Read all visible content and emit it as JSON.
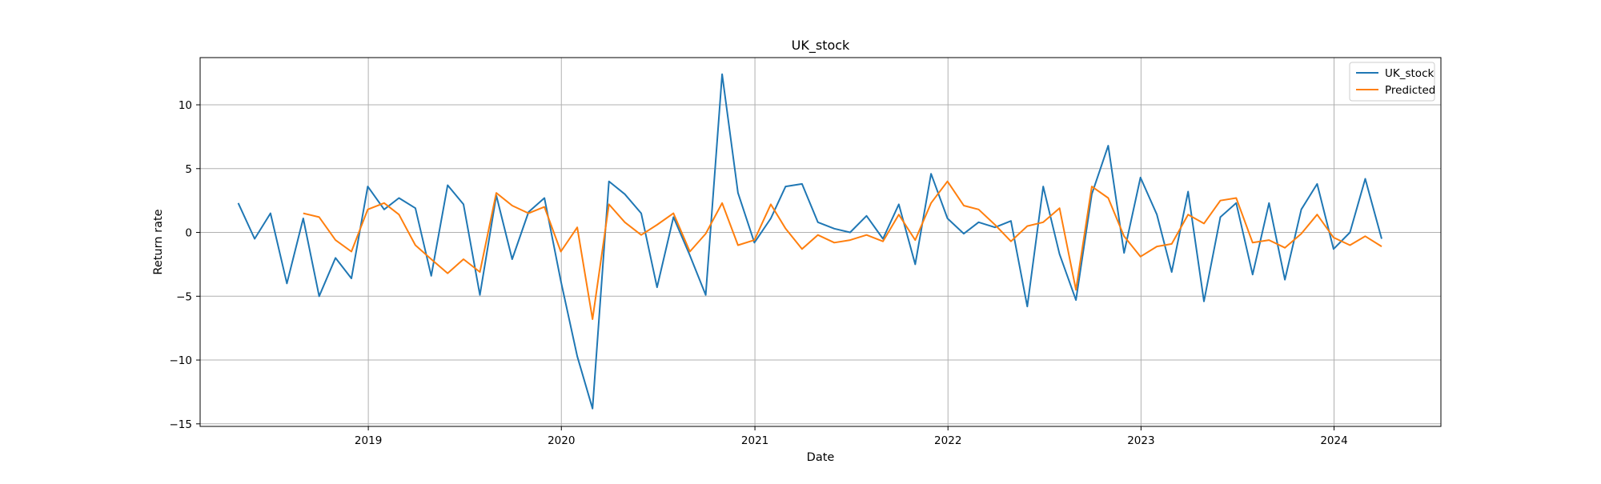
{
  "chart_data": {
    "type": "line",
    "title": "UK_stock",
    "xlabel": "Date",
    "ylabel": "Return rate",
    "xlim": [
      "2018-02-17",
      "2024-07-21"
    ],
    "ylim": [
      -15.2,
      13.7
    ],
    "x_ticks": [
      "2019",
      "2020",
      "2021",
      "2022",
      "2023",
      "2024"
    ],
    "y_ticks": [
      -15,
      -10,
      -5,
      0,
      5,
      10
    ],
    "grid": true,
    "legend_position": "top-right",
    "series": [
      {
        "name": "UK_stock",
        "color": "#1f77b4",
        "points": [
          [
            "2018-04-30",
            2.3
          ],
          [
            "2018-05-31",
            -0.5
          ],
          [
            "2018-06-30",
            1.5
          ],
          [
            "2018-07-31",
            -4.0
          ],
          [
            "2018-08-31",
            1.1
          ],
          [
            "2018-09-30",
            -5.0
          ],
          [
            "2018-10-31",
            -2.0
          ],
          [
            "2018-11-30",
            -3.6
          ],
          [
            "2018-12-31",
            3.6
          ],
          [
            "2019-01-31",
            1.8
          ],
          [
            "2019-02-28",
            2.7
          ],
          [
            "2019-03-31",
            1.9
          ],
          [
            "2019-04-30",
            -3.4
          ],
          [
            "2019-05-31",
            3.7
          ],
          [
            "2019-06-30",
            2.2
          ],
          [
            "2019-07-31",
            -4.9
          ],
          [
            "2019-08-31",
            2.9
          ],
          [
            "2019-09-30",
            -2.1
          ],
          [
            "2019-10-31",
            1.6
          ],
          [
            "2019-11-30",
            2.7
          ],
          [
            "2019-12-31",
            -3.8
          ],
          [
            "2020-01-31",
            -9.7
          ],
          [
            "2020-02-29",
            -13.8
          ],
          [
            "2020-03-31",
            4.0
          ],
          [
            "2020-04-30",
            3.0
          ],
          [
            "2020-05-31",
            1.5
          ],
          [
            "2020-06-30",
            -4.3
          ],
          [
            "2020-07-31",
            1.2
          ],
          [
            "2020-08-31",
            -1.8
          ],
          [
            "2020-09-30",
            -4.9
          ],
          [
            "2020-10-31",
            12.4
          ],
          [
            "2020-11-30",
            3.1
          ],
          [
            "2020-12-31",
            -0.8
          ],
          [
            "2021-01-31",
            1.1
          ],
          [
            "2021-02-28",
            3.6
          ],
          [
            "2021-03-31",
            3.8
          ],
          [
            "2021-04-30",
            0.8
          ],
          [
            "2021-05-31",
            0.3
          ],
          [
            "2021-06-30",
            0.0
          ],
          [
            "2021-07-31",
            1.3
          ],
          [
            "2021-08-31",
            -0.5
          ],
          [
            "2021-09-30",
            2.2
          ],
          [
            "2021-10-31",
            -2.5
          ],
          [
            "2021-11-30",
            4.6
          ],
          [
            "2021-12-31",
            1.1
          ],
          [
            "2022-01-31",
            -0.1
          ],
          [
            "2022-02-28",
            0.8
          ],
          [
            "2022-03-31",
            0.4
          ],
          [
            "2022-04-30",
            0.9
          ],
          [
            "2022-05-31",
            -5.8
          ],
          [
            "2022-06-30",
            3.6
          ],
          [
            "2022-07-31",
            -1.7
          ],
          [
            "2022-08-31",
            -5.3
          ],
          [
            "2022-09-30",
            3.0
          ],
          [
            "2022-10-31",
            6.8
          ],
          [
            "2022-11-30",
            -1.6
          ],
          [
            "2022-12-31",
            4.3
          ],
          [
            "2023-01-31",
            1.4
          ],
          [
            "2023-02-28",
            -3.1
          ],
          [
            "2023-03-31",
            3.2
          ],
          [
            "2023-04-30",
            -5.4
          ],
          [
            "2023-05-31",
            1.2
          ],
          [
            "2023-06-30",
            2.3
          ],
          [
            "2023-07-31",
            -3.3
          ],
          [
            "2023-08-31",
            2.3
          ],
          [
            "2023-09-30",
            -3.7
          ],
          [
            "2023-10-31",
            1.8
          ],
          [
            "2023-11-30",
            3.8
          ],
          [
            "2023-12-31",
            -1.3
          ],
          [
            "2024-01-31",
            0.0
          ],
          [
            "2024-02-29",
            4.2
          ],
          [
            "2024-03-31",
            -0.5
          ]
        ]
      },
      {
        "name": "Predicted",
        "color": "#ff7f0e",
        "points": [
          [
            "2018-08-31",
            1.5
          ],
          [
            "2018-09-30",
            1.2
          ],
          [
            "2018-10-31",
            -0.6
          ],
          [
            "2018-11-30",
            -1.5
          ],
          [
            "2018-12-31",
            1.8
          ],
          [
            "2019-01-31",
            2.3
          ],
          [
            "2019-02-28",
            1.4
          ],
          [
            "2019-03-31",
            -1.0
          ],
          [
            "2019-04-30",
            -2.1
          ],
          [
            "2019-05-31",
            -3.2
          ],
          [
            "2019-06-30",
            -2.1
          ],
          [
            "2019-07-31",
            -3.1
          ],
          [
            "2019-08-31",
            3.1
          ],
          [
            "2019-09-30",
            2.1
          ],
          [
            "2019-10-31",
            1.5
          ],
          [
            "2019-11-30",
            2.0
          ],
          [
            "2019-12-31",
            -1.5
          ],
          [
            "2020-01-31",
            0.4
          ],
          [
            "2020-02-29",
            -6.8
          ],
          [
            "2020-03-31",
            2.2
          ],
          [
            "2020-04-30",
            0.8
          ],
          [
            "2020-05-31",
            -0.2
          ],
          [
            "2020-06-30",
            0.6
          ],
          [
            "2020-07-31",
            1.5
          ],
          [
            "2020-08-31",
            -1.5
          ],
          [
            "2020-09-30",
            -0.1
          ],
          [
            "2020-10-31",
            2.3
          ],
          [
            "2020-11-30",
            -1.0
          ],
          [
            "2020-12-31",
            -0.6
          ],
          [
            "2021-01-31",
            2.2
          ],
          [
            "2021-02-28",
            0.3
          ],
          [
            "2021-03-31",
            -1.3
          ],
          [
            "2021-04-30",
            -0.2
          ],
          [
            "2021-05-31",
            -0.8
          ],
          [
            "2021-06-30",
            -0.6
          ],
          [
            "2021-07-31",
            -0.2
          ],
          [
            "2021-08-31",
            -0.7
          ],
          [
            "2021-09-30",
            1.4
          ],
          [
            "2021-10-31",
            -0.6
          ],
          [
            "2021-11-30",
            2.3
          ],
          [
            "2021-12-31",
            4.0
          ],
          [
            "2022-01-31",
            2.1
          ],
          [
            "2022-02-28",
            1.8
          ],
          [
            "2022-03-31",
            0.6
          ],
          [
            "2022-04-30",
            -0.7
          ],
          [
            "2022-05-31",
            0.5
          ],
          [
            "2022-06-30",
            0.8
          ],
          [
            "2022-07-31",
            1.9
          ],
          [
            "2022-08-31",
            -4.5
          ],
          [
            "2022-09-30",
            3.6
          ],
          [
            "2022-10-31",
            2.7
          ],
          [
            "2022-11-30",
            -0.3
          ],
          [
            "2022-12-31",
            -1.9
          ],
          [
            "2023-01-31",
            -1.1
          ],
          [
            "2023-02-28",
            -0.9
          ],
          [
            "2023-03-31",
            1.4
          ],
          [
            "2023-04-30",
            0.7
          ],
          [
            "2023-05-31",
            2.5
          ],
          [
            "2023-06-30",
            2.7
          ],
          [
            "2023-07-31",
            -0.8
          ],
          [
            "2023-08-31",
            -0.6
          ],
          [
            "2023-09-30",
            -1.2
          ],
          [
            "2023-10-31",
            -0.1
          ],
          [
            "2023-11-30",
            1.4
          ],
          [
            "2023-12-31",
            -0.4
          ],
          [
            "2024-01-31",
            -1.0
          ],
          [
            "2024-02-29",
            -0.3
          ],
          [
            "2024-03-31",
            -1.1
          ]
        ]
      }
    ]
  }
}
